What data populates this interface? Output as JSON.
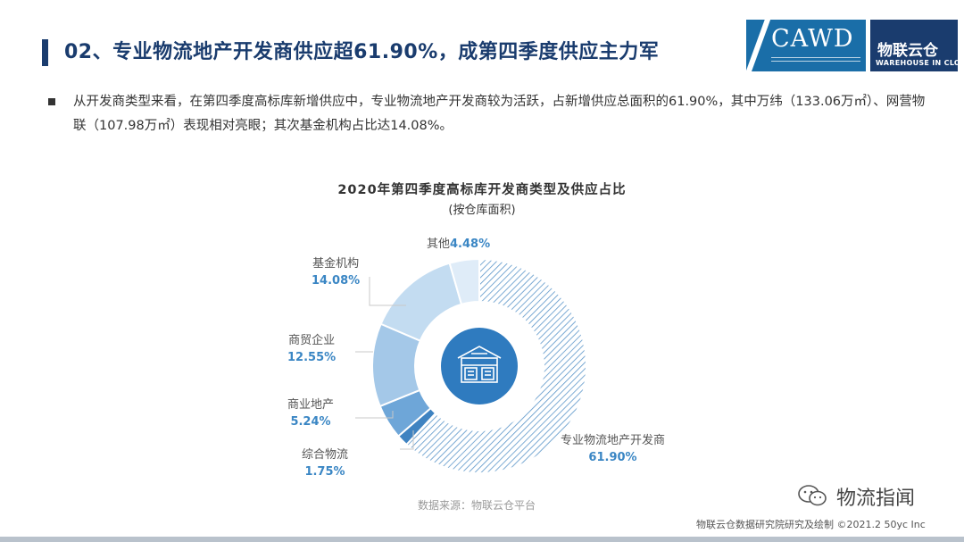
{
  "header": {
    "title": "02、专业物流地产开发商供应超61.90%，成第四季度供应主力军"
  },
  "logos": {
    "cawd_text": "CAWD",
    "warehouse_cn": "物联云仓",
    "warehouse_en": "WAREHOUSE IN CLOUD"
  },
  "bullet": {
    "text": "从开发商类型来看，在第四季度高标库新增供应中，专业物流地产开发商较为活跃，占新增供应总面积的61.90%，其中万纬（133.06万㎡）、网营物联（107.98万㎡）表现相对亮眼；其次基金机构占比达14.08%。"
  },
  "chart_data": {
    "type": "pie",
    "title": "2020年第四季度高标库开发商类型及供应占比",
    "subtitle": "(按仓库面积)",
    "categories": [
      "专业物流地产开发商",
      "综合物流",
      "商业地产",
      "商贸企业",
      "基金机构",
      "其他"
    ],
    "values": [
      61.9,
      1.75,
      5.24,
      12.55,
      14.08,
      4.48
    ],
    "value_labels": [
      "61.90%",
      "1.75%",
      "5.24%",
      "12.55%",
      "14.08%",
      "4.48%"
    ],
    "colors": [
      "#ffffff",
      "#3f83c1",
      "#6ea6d8",
      "#a4c8e8",
      "#c3dcf1",
      "#dfecf8"
    ],
    "hatch_color": "#5b95c9",
    "center_circle_color": "#2f7bbf",
    "center_icon": "warehouse-icon",
    "legend": "none"
  },
  "source": "数据来源：物联云仓平台",
  "watermark": {
    "icon": "wechat-icon",
    "name": "物流指闻"
  },
  "footer": {
    "credit": "物联云仓数据研究院研究及绘制   ©2021.2 50yc Inc"
  }
}
